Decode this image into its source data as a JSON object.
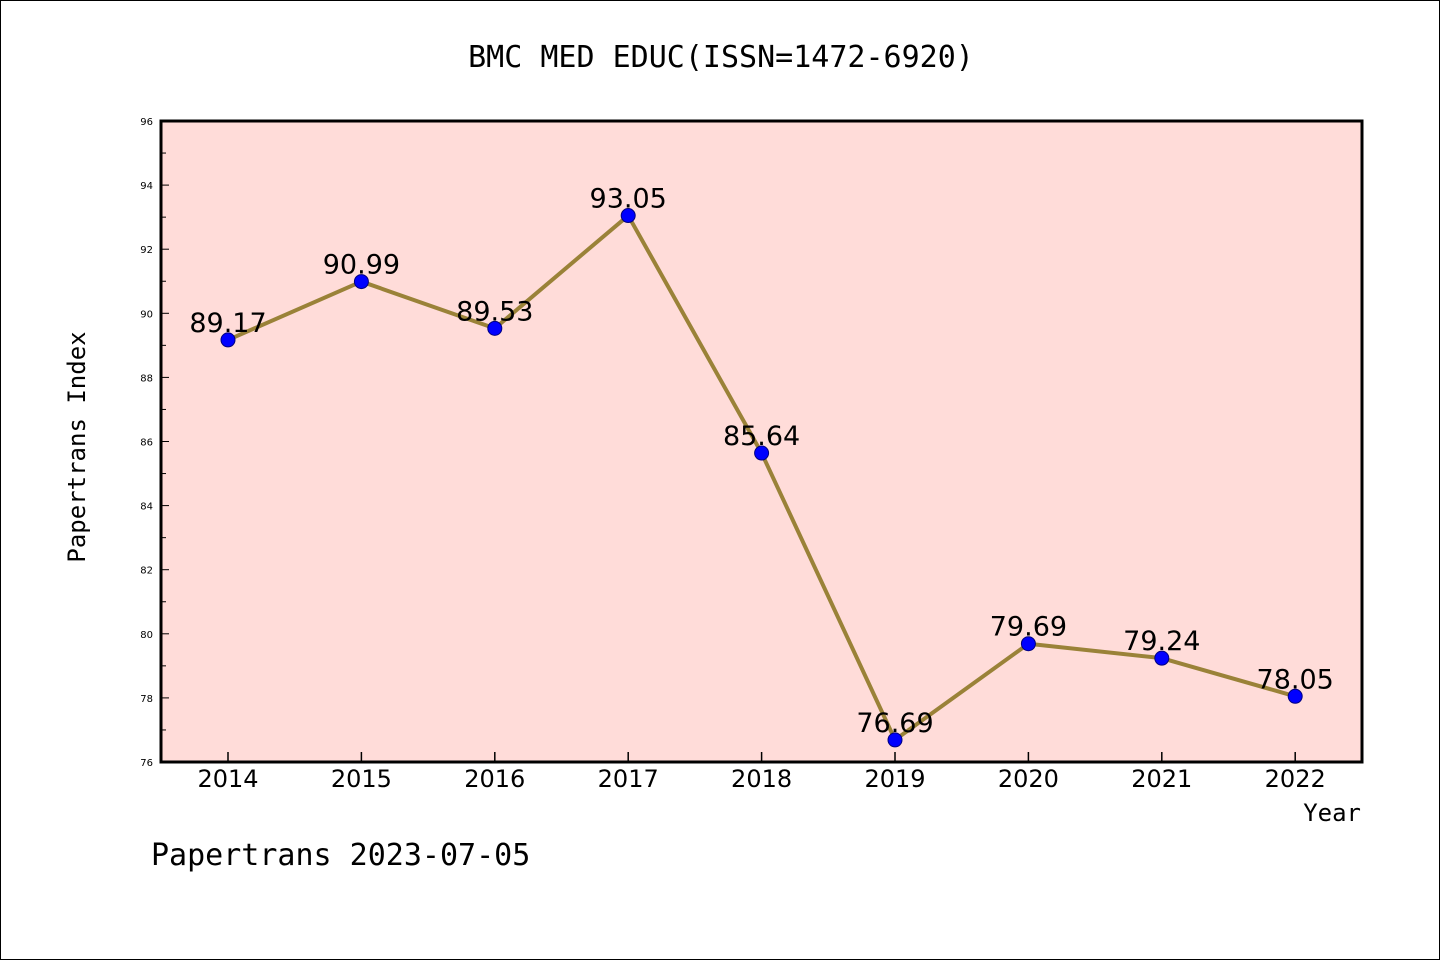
{
  "chart_data": {
    "type": "line",
    "title": "BMC MED EDUC(ISSN=1472-6920)",
    "xlabel": "Year",
    "ylabel": "Papertrans Index",
    "footer": "Papertrans 2023-07-05",
    "categories": [
      "2014",
      "2015",
      "2016",
      "2017",
      "2018",
      "2019",
      "2020",
      "2021",
      "2022"
    ],
    "values": [
      89.17,
      90.99,
      89.53,
      93.05,
      85.64,
      76.69,
      79.69,
      79.24,
      78.05
    ],
    "data_labels": [
      "89.17",
      "90.99",
      "89.53",
      "93.05",
      "85.64",
      "76.69",
      "79.69",
      "79.24",
      "78.05"
    ],
    "ylim": [
      76,
      96
    ],
    "yticks": [
      "76",
      "78",
      "80",
      "82",
      "84",
      "86",
      "88",
      "90",
      "92",
      "94",
      "96"
    ],
    "grid": false,
    "colors": {
      "plot_background": "#ffdcd9",
      "line": "#9a8238",
      "marker": "#0000ff",
      "marker_edge": "#000080"
    }
  }
}
